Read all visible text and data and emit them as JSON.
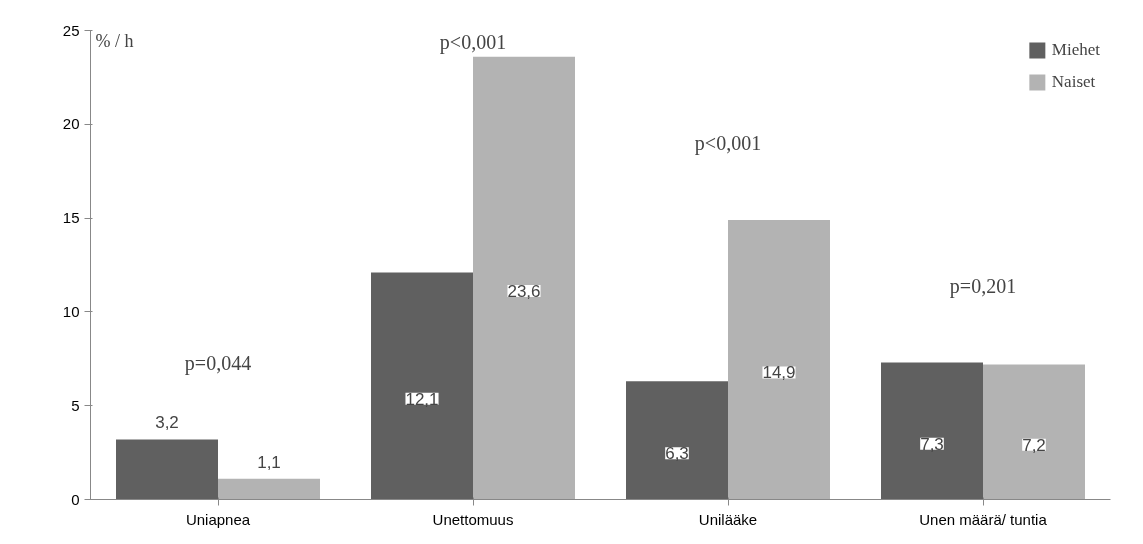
{
  "chart_data": {
    "type": "bar",
    "ylabel": "% / h",
    "categories": [
      "Uniapnea",
      "Unettomuus",
      "Unilääke",
      "Unen määrä/ tuntia"
    ],
    "series": [
      {
        "name": "Miehet",
        "color": "#606060",
        "values": [
          3.2,
          12.1,
          6.3,
          7.3
        ],
        "value_labels": [
          "3,2",
          "12,1",
          "6,3",
          "7,3"
        ]
      },
      {
        "name": "Naiset",
        "color": "#b3b3b3",
        "values": [
          1.1,
          23.6,
          14.9,
          7.2
        ],
        "value_labels": [
          "1,1",
          "23,6",
          "14,9",
          "7,2"
        ]
      }
    ],
    "ylim": [
      0,
      25
    ],
    "yticks": [
      0,
      5,
      10,
      15,
      20,
      25
    ],
    "grid": false,
    "legend": "top right",
    "annotations": [
      "p=0,044",
      "p<0,001",
      "p<0,001",
      "p=0,201"
    ]
  }
}
